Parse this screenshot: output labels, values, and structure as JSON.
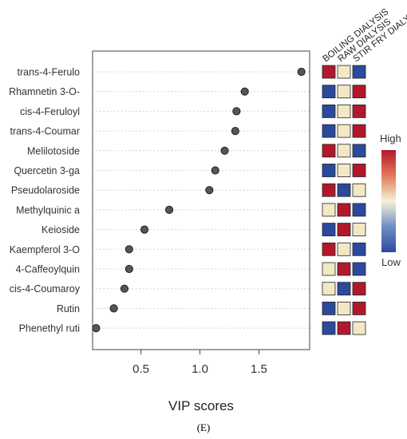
{
  "chart_data": {
    "type": "scatter",
    "xlabel": "VIP scores",
    "xticks": [
      0.5,
      1.0,
      1.5
    ],
    "xlim": [
      0.09,
      1.93
    ],
    "grid": "horizontal dotted",
    "features": [
      "trans-4-Ferulo",
      "Rhamnetin 3-O-",
      "cis-4-Feruloyl",
      "trans-4-Coumar",
      "Melilotoside",
      "Quercetin 3-ga",
      "Pseudolaroside",
      "Methylquinic a",
      "Keioside",
      "Kaempferol 3-O",
      "4-Caffeoylquin",
      "cis-4-Coumaroy",
      "Rutin",
      "Phenethyl ruti"
    ],
    "vip_scores": [
      1.86,
      1.38,
      1.31,
      1.3,
      1.21,
      1.13,
      1.08,
      0.74,
      0.53,
      0.4,
      0.4,
      0.36,
      0.27,
      0.12
    ],
    "groups": [
      "BOILING DIALYSIS",
      "RAW DIALYSIS",
      "STIR FRY DIALYSIS"
    ],
    "heatmap_levels": [
      [
        "high",
        "mid",
        "low"
      ],
      [
        "low",
        "mid",
        "high"
      ],
      [
        "low",
        "mid",
        "high"
      ],
      [
        "low",
        "mid",
        "high"
      ],
      [
        "high",
        "mid",
        "low"
      ],
      [
        "low",
        "mid",
        "high"
      ],
      [
        "high",
        "low",
        "mid"
      ],
      [
        "mid",
        "high",
        "low"
      ],
      [
        "low",
        "high",
        "mid"
      ],
      [
        "high",
        "mid",
        "low"
      ],
      [
        "mid",
        "high",
        "low"
      ],
      [
        "mid",
        "low",
        "high"
      ],
      [
        "low",
        "mid",
        "high"
      ],
      [
        "low",
        "high",
        "mid"
      ]
    ],
    "colorbar": {
      "high_label": "High",
      "low_label": "Low"
    },
    "colors": {
      "high": "#b2182b",
      "mid": "#f2e8c4",
      "low": "#2c4a9c",
      "point": "#555555"
    }
  },
  "panel_label": "(E)"
}
